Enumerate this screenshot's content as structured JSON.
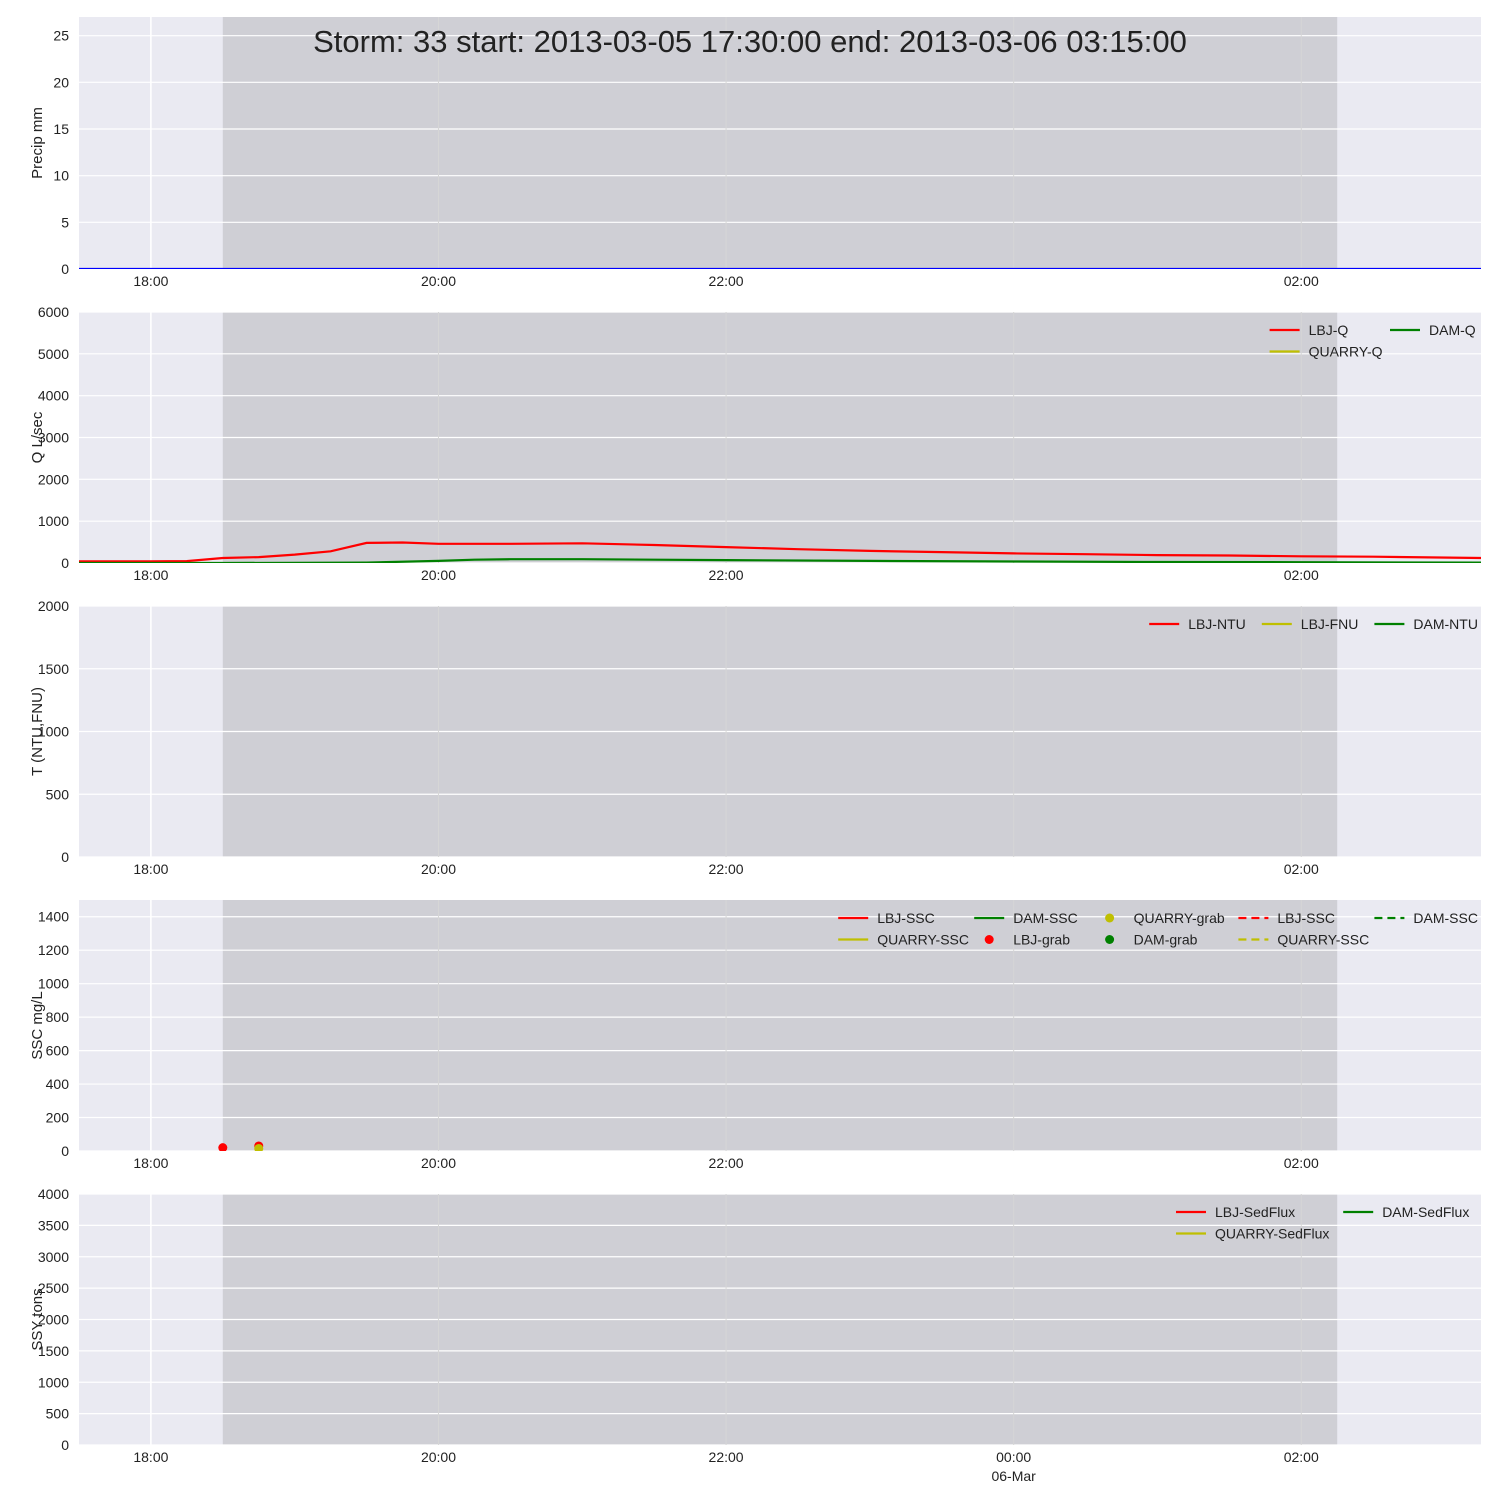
{
  "figure": {
    "title": "Storm: 33 start: 2013-03-05 17:30:00 end: 2013-03-06 03:15:00"
  },
  "chart_data": [
    {
      "type": "line",
      "ylabel": "Precip mm",
      "ylim": [
        0,
        27
      ],
      "yticks": [
        0,
        5,
        10,
        15,
        20,
        25
      ],
      "storm_window": [
        "2013-03-05 18:30",
        "2013-03-06 02:15"
      ],
      "series": [
        {
          "color": "#0000ff",
          "style": "line",
          "x": [
            "2013-03-05 17:30",
            "2013-03-06 03:15"
          ],
          "y": [
            0,
            0
          ]
        }
      ],
      "legend": {
        "placement": "none",
        "columns": 0,
        "entries": []
      }
    },
    {
      "type": "line",
      "ylabel": "Q L/sec",
      "ylim": [
        0,
        6000
      ],
      "yticks": [
        0,
        1000,
        2000,
        3000,
        4000,
        5000,
        6000
      ],
      "storm_window": [
        "2013-03-05 18:30",
        "2013-03-06 02:15"
      ],
      "series": [
        {
          "name": "LBJ-Q",
          "color": "#ff0000",
          "style": "line",
          "x": [
            "2013-03-05 17:30",
            "2013-03-05 17:45",
            "2013-03-05 18:00",
            "2013-03-05 18:15",
            "2013-03-05 18:30",
            "2013-03-05 18:45",
            "2013-03-05 19:00",
            "2013-03-05 19:15",
            "2013-03-05 19:30",
            "2013-03-05 19:45",
            "2013-03-05 20:00",
            "2013-03-05 20:30",
            "2013-03-05 21:00",
            "2013-03-05 21:30",
            "2013-03-05 22:00",
            "2013-03-05 22:30",
            "2013-03-05 23:00",
            "2013-03-05 23:30",
            "2013-03-06 00:00",
            "2013-03-06 00:30",
            "2013-03-06 01:00",
            "2013-03-06 01:30",
            "2013-03-06 02:00",
            "2013-03-06 02:30",
            "2013-03-06 03:15"
          ],
          "y": [
            40,
            40,
            40,
            45,
            120,
            140,
            200,
            280,
            480,
            490,
            460,
            460,
            470,
            430,
            380,
            330,
            290,
            260,
            230,
            210,
            190,
            180,
            160,
            150,
            120
          ]
        },
        {
          "name": "DAM-Q",
          "color": "#008000",
          "style": "line",
          "x": [
            "2013-03-05 17:30",
            "2013-03-05 18:30",
            "2013-03-05 19:00",
            "2013-03-05 19:30",
            "2013-03-05 20:00",
            "2013-03-05 20:15",
            "2013-03-05 20:30",
            "2013-03-05 21:00",
            "2013-03-05 21:30",
            "2013-03-05 22:00",
            "2013-03-05 23:00",
            "2013-03-06 00:00",
            "2013-03-06 01:00",
            "2013-03-06 02:00",
            "2013-03-06 03:15"
          ],
          "y": [
            0,
            0,
            5,
            10,
            50,
            80,
            90,
            90,
            80,
            70,
            50,
            35,
            25,
            20,
            10
          ]
        },
        {
          "name": "QUARRY-Q",
          "color": "#bfbf00",
          "style": "line",
          "x": [],
          "y": []
        }
      ],
      "legend": {
        "placement": "top-right",
        "columns": 2,
        "entries": [
          {
            "label": "LBJ-Q",
            "color": "#ff0000",
            "style": "line"
          },
          {
            "label": "QUARRY-Q",
            "color": "#bfbf00",
            "style": "line"
          },
          {
            "label": "DAM-Q",
            "color": "#008000",
            "style": "line"
          }
        ]
      }
    },
    {
      "type": "line",
      "ylabel": "T (NTU,FNU)",
      "ylim": [
        0,
        2000
      ],
      "yticks": [
        0,
        500,
        1000,
        1500,
        2000
      ],
      "storm_window": [
        "2013-03-05 18:30",
        "2013-03-06 02:15"
      ],
      "series": [
        {
          "name": "LBJ-NTU",
          "color": "#ff0000",
          "style": "line",
          "x": [],
          "y": []
        },
        {
          "name": "LBJ-FNU",
          "color": "#bfbf00",
          "style": "line",
          "x": [],
          "y": []
        },
        {
          "name": "DAM-NTU",
          "color": "#008000",
          "style": "line",
          "x": [],
          "y": []
        }
      ],
      "legend": {
        "placement": "top-right",
        "columns": 3,
        "entries": [
          {
            "label": "LBJ-NTU",
            "color": "#ff0000",
            "style": "line"
          },
          {
            "label": "LBJ-FNU",
            "color": "#bfbf00",
            "style": "line"
          },
          {
            "label": "DAM-NTU",
            "color": "#008000",
            "style": "line"
          }
        ]
      }
    },
    {
      "type": "line",
      "ylabel": "SSC mg/L",
      "ylim": [
        0,
        1500
      ],
      "yticks": [
        0,
        200,
        400,
        600,
        800,
        1000,
        1200,
        1400
      ],
      "storm_window": [
        "2013-03-05 18:30",
        "2013-03-06 02:15"
      ],
      "series": [
        {
          "name": "LBJ-grab",
          "color": "#ff0000",
          "style": "dot",
          "x": [
            "2013-03-05 18:30",
            "2013-03-05 18:45"
          ],
          "y": [
            20,
            30
          ]
        },
        {
          "name": "QUARRY-grab",
          "color": "#bfbf00",
          "style": "dot",
          "x": [
            "2013-03-05 18:45"
          ],
          "y": [
            15
          ]
        }
      ],
      "legend": {
        "placement": "top-right",
        "columns": 5,
        "entries": [
          {
            "label": "LBJ-SSC",
            "color": "#ff0000",
            "style": "line"
          },
          {
            "label": "QUARRY-SSC",
            "color": "#bfbf00",
            "style": "line"
          },
          {
            "label": "DAM-SSC",
            "color": "#008000",
            "style": "line"
          },
          {
            "label": "LBJ-grab",
            "color": "#ff0000",
            "style": "dot"
          },
          {
            "label": "QUARRY-grab",
            "color": "#bfbf00",
            "style": "dot"
          },
          {
            "label": "DAM-grab",
            "color": "#008000",
            "style": "dot"
          },
          {
            "label": "LBJ-SSC",
            "color": "#ff0000",
            "style": "dash"
          },
          {
            "label": "QUARRY-SSC",
            "color": "#bfbf00",
            "style": "dash"
          },
          {
            "label": "DAM-SSC",
            "color": "#008000",
            "style": "dash"
          }
        ]
      }
    },
    {
      "type": "line",
      "ylabel": "SSY tons",
      "ylim": [
        0,
        4000
      ],
      "yticks": [
        0,
        500,
        1000,
        1500,
        2000,
        2500,
        3000,
        3500,
        4000
      ],
      "storm_window": [
        "2013-03-05 18:30",
        "2013-03-06 02:15"
      ],
      "series": [
        {
          "name": "LBJ-SedFlux",
          "color": "#ff0000",
          "style": "line",
          "x": [],
          "y": []
        },
        {
          "name": "QUARRY-SedFlux",
          "color": "#bfbf00",
          "style": "line",
          "x": [],
          "y": []
        },
        {
          "name": "DAM-SedFlux",
          "color": "#008000",
          "style": "line",
          "x": [],
          "y": []
        }
      ],
      "legend": {
        "placement": "top-right",
        "columns": 2,
        "entries": [
          {
            "label": "LBJ-SedFlux",
            "color": "#ff0000",
            "style": "line"
          },
          {
            "label": "QUARRY-SedFlux",
            "color": "#bfbf00",
            "style": "line"
          },
          {
            "label": "DAM-SedFlux",
            "color": "#008000",
            "style": "line"
          }
        ]
      }
    }
  ],
  "x_axis": {
    "range": [
      "2013-03-05 17:30",
      "2013-03-06 03:15"
    ],
    "ticks": [
      {
        "at": "2013-03-05 18:00",
        "label": "18:00",
        "grid": "major"
      },
      {
        "at": "2013-03-05 20:00",
        "label": "20:00",
        "grid": "minor"
      },
      {
        "at": "2013-03-05 22:00",
        "label": "22:00",
        "grid": "minor"
      },
      {
        "at": "2013-03-06 00:00",
        "label": "00:00",
        "sublabel": "06-Mar",
        "grid": "minor",
        "bottom_only": true
      },
      {
        "at": "2013-03-06 02:00",
        "label": "02:00",
        "grid": "minor"
      }
    ]
  },
  "style": {
    "axes_bg": "#eaeaf2",
    "grid_major": "#ffffff",
    "grid_minor": "#d6d6d6",
    "storm_span": "#808080",
    "storm_span_alpha": 0.25
  }
}
